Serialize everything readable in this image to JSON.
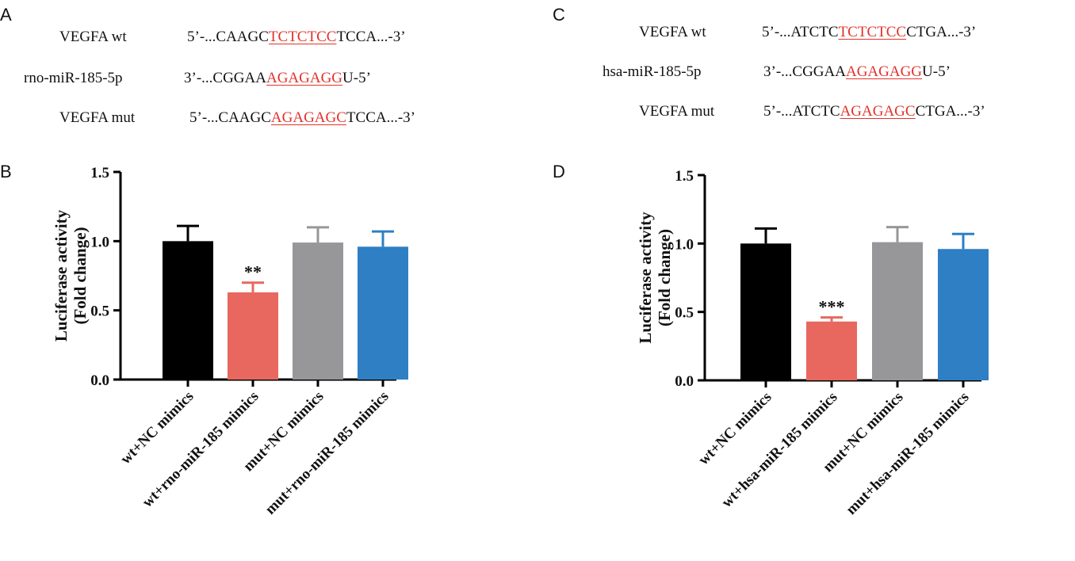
{
  "panels": {
    "A": {
      "letter": "A",
      "rows": [
        {
          "label": "VEGFA wt",
          "prefix": "5’-...CAAGC",
          "highlight": "TCTCTCC",
          "suffix": "TCCA...-3’"
        },
        {
          "label": "rno-miR-185-5p",
          "prefix": "3’-...CGGAA",
          "highlight": "AGAGAGG",
          "suffix": "U-5’"
        },
        {
          "label": "VEGFA mut",
          "prefix": "5’-...CAAGC",
          "highlight": "AGAGAGC",
          "suffix": "TCCA...-3’"
        }
      ]
    },
    "C": {
      "letter": "C",
      "rows": [
        {
          "label": "VEGFA wt",
          "prefix": "5’-...ATCTC",
          "highlight": "TCTCTCC",
          "suffix": "CTGA...-3’"
        },
        {
          "label": "hsa-miR-185-5p",
          "prefix": "3’-...CGGAA",
          "highlight": "AGAGAGG",
          "suffix": "U-5’"
        },
        {
          "label": "VEGFA mut",
          "prefix": "5’-...ATCTC",
          "highlight": "AGAGAGC",
          "suffix": "CTGA...-3’"
        }
      ]
    },
    "B": {
      "letter": "B"
    },
    "D": {
      "letter": "D"
    }
  },
  "colors": {
    "black": "#000000",
    "red": "#e8685f",
    "gray": "#97979a",
    "blue": "#2e7fc4",
    "highlight": "#e0332b"
  },
  "chart_data": [
    {
      "panel": "B",
      "type": "bar",
      "ylabel": "Luciferase activity",
      "ylabel2": "(Fold change)",
      "ylim": [
        0,
        1.5
      ],
      "yticks": [
        "0.0",
        "0.5",
        "1.0",
        "1.5"
      ],
      "categories": [
        "wt+NC mimics",
        "wt+rno-miR-185 mimics",
        "mut+NC mimics",
        "mut+rno-miR-185 mimics"
      ],
      "values": [
        1.0,
        0.63,
        0.99,
        0.96
      ],
      "errors": [
        0.11,
        0.07,
        0.11,
        0.11
      ],
      "annotations": [
        "",
        "**",
        "",
        ""
      ],
      "bar_colors": [
        "#000000",
        "#e8685f",
        "#97979a",
        "#2e7fc4"
      ]
    },
    {
      "panel": "D",
      "type": "bar",
      "ylabel": "Luciferase activity",
      "ylabel2": "(Fold change)",
      "ylim": [
        0,
        1.5
      ],
      "yticks": [
        "0.0",
        "0.5",
        "1.0",
        "1.5"
      ],
      "categories": [
        "wt+NC mimics",
        "wt+hsa-miR-185 mimics",
        "mut+NC mimics",
        "mut+hsa-miR-185 mimics"
      ],
      "values": [
        1.0,
        0.43,
        1.01,
        0.96
      ],
      "errors": [
        0.11,
        0.03,
        0.11,
        0.11
      ],
      "annotations": [
        "",
        "***",
        "",
        ""
      ],
      "bar_colors": [
        "#000000",
        "#e8685f",
        "#97979a",
        "#2e7fc4"
      ]
    }
  ]
}
